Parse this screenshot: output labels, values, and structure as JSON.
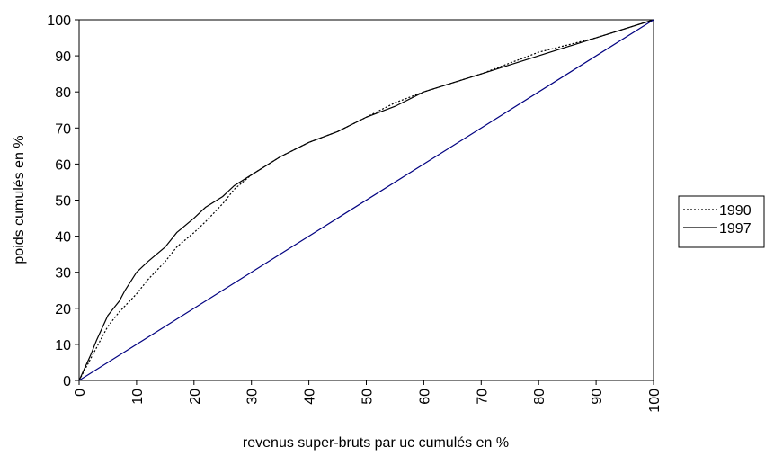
{
  "chart_data": {
    "type": "line",
    "xlabel": "revenus super-bruts par uc cumulés en %",
    "ylabel": "poids cumulés en %",
    "xlim": [
      0,
      100
    ],
    "xticks": [
      0,
      10,
      20,
      30,
      40,
      50,
      60,
      70,
      80,
      90,
      100
    ],
    "ylim": [
      0,
      100
    ],
    "yticks": [
      0,
      10,
      20,
      30,
      40,
      50,
      60,
      70,
      80,
      90,
      100
    ],
    "legend": "right",
    "series": [
      {
        "name": "1990",
        "color": "#000000",
        "dash": "dotted",
        "x": [
          0,
          2,
          3,
          5,
          7,
          10,
          12,
          15,
          17,
          20,
          22,
          25,
          27,
          30,
          35,
          40,
          45,
          50,
          55,
          60,
          70,
          80,
          90,
          100
        ],
        "values": [
          0,
          6,
          9,
          15,
          19,
          24,
          28,
          33,
          37,
          41,
          44,
          49,
          53,
          57,
          62,
          66,
          69,
          73,
          77,
          80,
          85,
          91,
          95,
          100
        ]
      },
      {
        "name": "1997",
        "color": "#000000",
        "dash": "solid",
        "x": [
          0,
          2,
          3,
          5,
          7,
          8,
          10,
          12,
          15,
          17,
          20,
          22,
          25,
          27,
          30,
          35,
          40,
          45,
          50,
          55,
          60,
          70,
          80,
          90,
          100
        ],
        "values": [
          0,
          7,
          11,
          18,
          22,
          25,
          30,
          33,
          37,
          41,
          45,
          48,
          51,
          54,
          57,
          62,
          66,
          69,
          73,
          76,
          80,
          85,
          90,
          95,
          100
        ]
      },
      {
        "color": "#000080",
        "dash": "solid",
        "x": [
          0,
          100
        ],
        "values": [
          0,
          100
        ]
      }
    ]
  }
}
